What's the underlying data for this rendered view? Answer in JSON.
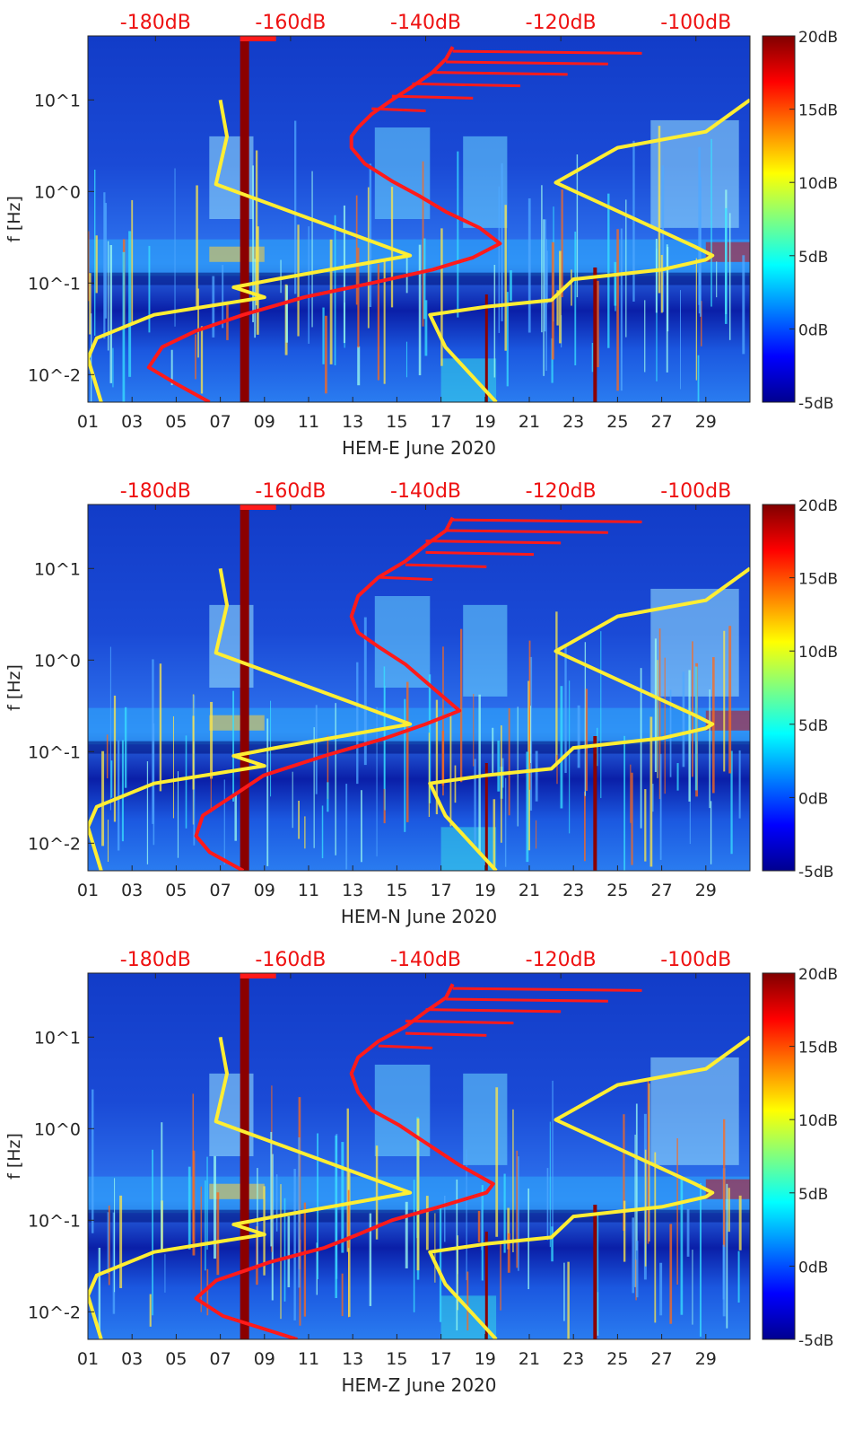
{
  "colors": {
    "psd_curve": "#ff1a1a",
    "noise_model": "#ffee33",
    "top_axis_text": "#ee1111",
    "axis_text": "#262626",
    "dark_band": "#8b0000"
  },
  "chart_data": [
    {
      "type": "heatmap",
      "title": "",
      "xlabel": "HEM-E June 2020",
      "ylabel": "f [Hz]",
      "x_tick_labels": [
        "01",
        "03",
        "05",
        "07",
        "09",
        "11",
        "13",
        "15",
        "17",
        "19",
        "21",
        "23",
        "25",
        "27",
        "29"
      ],
      "x_range_days": [
        1,
        31
      ],
      "y_scale": "log",
      "y_range_hz": [
        0.005,
        50
      ],
      "y_tick_labels": [
        "10^-2",
        "10^-1",
        "10^0",
        "10^1"
      ],
      "y_tick_values": [
        0.01,
        0.1,
        1,
        10
      ],
      "top_axis_labels": [
        "-180dB",
        "-160dB",
        "-140dB",
        "-120dB",
        "-100dB"
      ],
      "top_axis_values_db": [
        -180,
        -160,
        -140,
        -120,
        -100
      ],
      "colorbar_labels": [
        "20dB",
        "15dB",
        "10dB",
        "5dB",
        "0dB",
        "-5dB"
      ],
      "colorbar_values_db": [
        20,
        15,
        10,
        5,
        0,
        -5
      ],
      "colorbar_range_db": [
        -5,
        20
      ],
      "dark_band_day": 8.1,
      "legend": "none",
      "series": [
        {
          "name": "PSD (top dB axis)",
          "color": "#ff1a1a",
          "points_db_hz": [
            [
              -172,
              0.005
            ],
            [
              -177,
              0.008
            ],
            [
              -181,
              0.012
            ],
            [
              -179,
              0.02
            ],
            [
              -174,
              0.03
            ],
            [
              -167,
              0.045
            ],
            [
              -158,
              0.07
            ],
            [
              -148,
              0.1
            ],
            [
              -139,
              0.14
            ],
            [
              -133,
              0.19
            ],
            [
              -129,
              0.27
            ],
            [
              -132,
              0.4
            ],
            [
              -137,
              0.6
            ],
            [
              -141,
              0.9
            ],
            [
              -145,
              1.3
            ],
            [
              -149,
              2
            ],
            [
              -151,
              3
            ],
            [
              -151,
              4
            ],
            [
              -150,
              5
            ],
            [
              -148,
              7
            ],
            [
              -145,
              10
            ],
            [
              -142,
              14
            ],
            [
              -139,
              20
            ],
            [
              -137,
              28
            ],
            [
              -136,
              38
            ]
          ]
        },
        {
          "name": "noise model (bottom date axis)",
          "color": "#ffee33",
          "points_day_hz": [
            [
              1.6,
              0.005
            ],
            [
              1,
              0.015
            ],
            [
              1.4,
              0.025
            ],
            [
              4,
              0.045
            ],
            [
              9,
              0.07
            ],
            [
              7.6,
              0.09
            ],
            [
              9.5,
              0.11
            ],
            [
              15.6,
              0.2
            ],
            [
              6.8,
              1.2
            ],
            [
              7.3,
              4
            ],
            [
              7,
              10
            ]
          ]
        },
        {
          "name": "noise model right (bottom date axis)",
          "color": "#ffee33",
          "points_day_hz": [
            [
              19.5,
              0.005
            ],
            [
              17.2,
              0.02
            ],
            [
              16.5,
              0.045
            ],
            [
              19,
              0.055
            ],
            [
              22,
              0.065
            ],
            [
              23,
              0.11
            ],
            [
              27,
              0.14
            ],
            [
              29,
              0.18
            ],
            [
              29.3,
              0.2
            ],
            [
              28.5,
              0.25
            ],
            [
              22.2,
              1.25
            ],
            [
              25,
              3
            ],
            [
              29,
              4.5
            ],
            [
              31,
              10
            ]
          ]
        }
      ]
    },
    {
      "type": "heatmap",
      "title": "",
      "xlabel": "HEM-N June 2020",
      "ylabel": "f [Hz]",
      "x_tick_labels": [
        "01",
        "03",
        "05",
        "07",
        "09",
        "11",
        "13",
        "15",
        "17",
        "19",
        "21",
        "23",
        "25",
        "27",
        "29"
      ],
      "x_range_days": [
        1,
        31
      ],
      "y_scale": "log",
      "y_range_hz": [
        0.005,
        50
      ],
      "y_tick_labels": [
        "10^-2",
        "10^-1",
        "10^0",
        "10^1"
      ],
      "y_tick_values": [
        0.01,
        0.1,
        1,
        10
      ],
      "top_axis_labels": [
        "-180dB",
        "-160dB",
        "-140dB",
        "-120dB",
        "-100dB"
      ],
      "top_axis_values_db": [
        -180,
        -160,
        -140,
        -120,
        -100
      ],
      "colorbar_labels": [
        "20dB",
        "15dB",
        "10dB",
        "5dB",
        "0dB",
        "-5dB"
      ],
      "colorbar_values_db": [
        20,
        15,
        10,
        5,
        0,
        -5
      ],
      "colorbar_range_db": [
        -5,
        20
      ],
      "dark_band_day": 8.1,
      "legend": "none",
      "series": [
        {
          "name": "PSD (top dB axis)",
          "color": "#ff1a1a",
          "points_db_hz": [
            [
              -167,
              0.005
            ],
            [
              -172,
              0.008
            ],
            [
              -174,
              0.012
            ],
            [
              -173,
              0.02
            ],
            [
              -168,
              0.035
            ],
            [
              -164,
              0.055
            ],
            [
              -155,
              0.09
            ],
            [
              -146,
              0.14
            ],
            [
              -140,
              0.2
            ],
            [
              -135,
              0.28
            ],
            [
              -139,
              0.5
            ],
            [
              -143,
              0.9
            ],
            [
              -147,
              1.4
            ],
            [
              -150,
              2
            ],
            [
              -151,
              3
            ],
            [
              -150,
              5
            ],
            [
              -147,
              8
            ],
            [
              -143,
              12
            ],
            [
              -140,
              18
            ],
            [
              -137,
              26
            ],
            [
              -136,
              36
            ]
          ]
        },
        {
          "name": "noise model (bottom date axis)",
          "color": "#ffee33",
          "points_day_hz": [
            [
              1.6,
              0.005
            ],
            [
              1,
              0.015
            ],
            [
              1.4,
              0.025
            ],
            [
              4,
              0.045
            ],
            [
              9,
              0.07
            ],
            [
              7.6,
              0.09
            ],
            [
              9.5,
              0.11
            ],
            [
              15.6,
              0.2
            ],
            [
              6.8,
              1.2
            ],
            [
              7.3,
              4
            ],
            [
              7,
              10
            ]
          ]
        },
        {
          "name": "noise model right (bottom date axis)",
          "color": "#ffee33",
          "points_day_hz": [
            [
              19.5,
              0.005
            ],
            [
              17.2,
              0.02
            ],
            [
              16.5,
              0.045
            ],
            [
              19,
              0.055
            ],
            [
              22,
              0.065
            ],
            [
              23,
              0.11
            ],
            [
              27,
              0.14
            ],
            [
              29,
              0.18
            ],
            [
              29.3,
              0.2
            ],
            [
              28.5,
              0.25
            ],
            [
              22.2,
              1.25
            ],
            [
              25,
              3
            ],
            [
              29,
              4.5
            ],
            [
              31,
              10
            ]
          ]
        }
      ]
    },
    {
      "type": "heatmap",
      "title": "",
      "xlabel": "HEM-Z June 2020",
      "ylabel": "f [Hz]",
      "x_tick_labels": [
        "01",
        "03",
        "05",
        "07",
        "09",
        "11",
        "13",
        "15",
        "17",
        "19",
        "21",
        "23",
        "25",
        "27",
        "29"
      ],
      "x_range_days": [
        1,
        31
      ],
      "y_scale": "log",
      "y_range_hz": [
        0.005,
        50
      ],
      "y_tick_labels": [
        "10^-2",
        "10^-1",
        "10^0",
        "10^1"
      ],
      "y_tick_values": [
        0.01,
        0.1,
        1,
        10
      ],
      "top_axis_labels": [
        "-180dB",
        "-160dB",
        "-140dB",
        "-120dB",
        "-100dB"
      ],
      "top_axis_values_db": [
        -180,
        -160,
        -140,
        -120,
        -100
      ],
      "colorbar_labels": [
        "20dB",
        "15dB",
        "10dB",
        "5dB",
        "0dB",
        "-5dB"
      ],
      "colorbar_values_db": [
        20,
        15,
        10,
        5,
        0,
        -5
      ],
      "colorbar_range_db": [
        -5,
        20
      ],
      "dark_band_day": 8.1,
      "legend": "none",
      "series": [
        {
          "name": "PSD (top dB axis)",
          "color": "#ff1a1a",
          "points_db_hz": [
            [
              -159,
              0.005
            ],
            [
              -170,
              0.009
            ],
            [
              -174,
              0.014
            ],
            [
              -171,
              0.022
            ],
            [
              -163,
              0.035
            ],
            [
              -155,
              0.05
            ],
            [
              -150,
              0.07
            ],
            [
              -145,
              0.1
            ],
            [
              -138,
              0.14
            ],
            [
              -131,
              0.2
            ],
            [
              -130,
              0.25
            ],
            [
              -135,
              0.4
            ],
            [
              -140,
              0.7
            ],
            [
              -144,
              1.1
            ],
            [
              -148,
              1.6
            ],
            [
              -150,
              2.5
            ],
            [
              -151,
              4
            ],
            [
              -150,
              6
            ],
            [
              -147,
              9
            ],
            [
              -143,
              13
            ],
            [
              -140,
              19
            ],
            [
              -137,
              27
            ],
            [
              -136,
              38
            ]
          ]
        },
        {
          "name": "noise model (bottom date axis)",
          "color": "#ffee33",
          "points_day_hz": [
            [
              1.6,
              0.005
            ],
            [
              1,
              0.015
            ],
            [
              1.4,
              0.025
            ],
            [
              4,
              0.045
            ],
            [
              9,
              0.07
            ],
            [
              7.6,
              0.09
            ],
            [
              9.5,
              0.11
            ],
            [
              15.6,
              0.2
            ],
            [
              6.8,
              1.2
            ],
            [
              7.3,
              4
            ],
            [
              7,
              10
            ]
          ]
        },
        {
          "name": "noise model right (bottom date axis)",
          "color": "#ffee33",
          "points_day_hz": [
            [
              19.5,
              0.005
            ],
            [
              17.2,
              0.02
            ],
            [
              16.5,
              0.045
            ],
            [
              19,
              0.055
            ],
            [
              22,
              0.065
            ],
            [
              23,
              0.11
            ],
            [
              27,
              0.14
            ],
            [
              29,
              0.18
            ],
            [
              29.3,
              0.2
            ],
            [
              28.5,
              0.25
            ],
            [
              22.2,
              1.25
            ],
            [
              25,
              3
            ],
            [
              29,
              4.5
            ],
            [
              31,
              10
            ]
          ]
        }
      ]
    }
  ]
}
